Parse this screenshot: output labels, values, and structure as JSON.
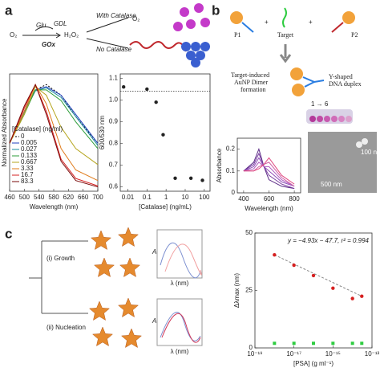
{
  "figure": {
    "panel_a": "a",
    "panel_b": "b",
    "panel_c": "c",
    "scheme_a": {
      "o2": "O₂",
      "glu": "Glu",
      "gdl": "GDL",
      "h2o2": "H₂O₂",
      "gox": "GOx",
      "with": "With Catalase",
      "o2_out": "O₂",
      "without": "No Catalase"
    },
    "scheme_b": {
      "p1": "P1",
      "plus1": "+",
      "target": "Target",
      "plus2": "+",
      "p2": "P2",
      "dimer": [
        "Target-induced",
        "AuNP Dimer",
        "formation"
      ],
      "duplex": [
        "Y-shaped",
        "DNA duplex"
      ],
      "series_order": "1 → 6",
      "scale_small": "100 nm",
      "scale_large": "500 nm"
    },
    "scheme_c": {
      "growth": "(i) Growth",
      "nucleation": "(ii) Nucleation",
      "a1": "A",
      "x1": "λ (nm)",
      "a2": "A",
      "x2": "λ (nm)"
    }
  },
  "chart_data": [
    {
      "type": "line",
      "xlabel": "Wavelength (nm)",
      "ylabel": "Normalized Absorbance",
      "legend_title": "[Catalase] (ng/ml)",
      "x": [
        460,
        500,
        530,
        560,
        600,
        640,
        700
      ],
      "xlim": [
        460,
        700
      ],
      "xticks": [
        460,
        500,
        540,
        580,
        620,
        660,
        700
      ],
      "ylim": [
        0,
        1.1
      ],
      "series": [
        {
          "name": "0",
          "color": "#000000",
          "dash": true,
          "values": [
            0.45,
            0.75,
            0.95,
            1.0,
            0.9,
            0.7,
            0.45
          ]
        },
        {
          "name": "0.005",
          "color": "#1f3fbf",
          "values": [
            0.45,
            0.75,
            0.95,
            0.98,
            0.9,
            0.72,
            0.45
          ]
        },
        {
          "name": "0.027",
          "color": "#1a8c9c",
          "values": [
            0.45,
            0.74,
            0.94,
            0.97,
            0.88,
            0.7,
            0.43
          ]
        },
        {
          "name": "0.133",
          "color": "#2e9e3a",
          "values": [
            0.45,
            0.72,
            0.95,
            0.95,
            0.85,
            0.65,
            0.4
          ]
        },
        {
          "name": "0.667",
          "color": "#b5a51d",
          "values": [
            0.45,
            0.72,
            0.98,
            0.9,
            0.6,
            0.4,
            0.25
          ]
        },
        {
          "name": "3.33",
          "color": "#e07b1a",
          "values": [
            0.45,
            0.75,
            1.0,
            0.82,
            0.4,
            0.2,
            0.1
          ]
        },
        {
          "name": "16.7",
          "color": "#d62020",
          "values": [
            0.45,
            0.78,
            1.0,
            0.75,
            0.3,
            0.12,
            0.05
          ]
        },
        {
          "name": "83.3",
          "color": "#7a0a0a",
          "values": [
            0.45,
            0.8,
            1.0,
            0.72,
            0.28,
            0.1,
            0.04
          ]
        }
      ]
    },
    {
      "type": "scatter",
      "xlabel": "[Catalase] (ng/mL)",
      "ylabel": "600/530 nm",
      "log_x": true,
      "xlim": [
        0.004,
        200
      ],
      "xticks": [
        0.01,
        0.1,
        1,
        10,
        100
      ],
      "ylim": [
        0.58,
        1.12
      ],
      "yticks": [
        0.6,
        0.7,
        0.8,
        0.9,
        {
          "value": 1,
          "label": "1.0"
        },
        1.1
      ],
      "hline": 1.04,
      "series": [
        {
          "name": null,
          "color": "#222222",
          "x": [
            0.006,
            0.1,
            0.3,
            0.7,
            3,
            20,
            80
          ],
          "values": [
            1.06,
            1.05,
            0.99,
            0.84,
            0.64,
            0.64,
            0.63
          ]
        }
      ]
    },
    {
      "type": "line",
      "xlabel": "Wavelength (nm)",
      "ylabel": "Absorbance",
      "x": [
        400,
        480,
        520,
        560,
        600,
        700,
        800
      ],
      "xlim": [
        350,
        850
      ],
      "xticks": [
        400,
        600,
        800
      ],
      "ylim": [
        0,
        0.25
      ],
      "yticks": [
        0,
        0.1,
        0.2
      ],
      "series": [
        {
          "name": null,
          "color": "#5b2a86",
          "values": [
            0.1,
            0.14,
            0.2,
            0.12,
            0.06,
            0.03,
            0.02
          ]
        },
        {
          "name": null,
          "color": "#7a3fa0",
          "values": [
            0.1,
            0.13,
            0.18,
            0.12,
            0.08,
            0.04,
            0.02
          ]
        },
        {
          "name": null,
          "color": "#8f4fb8",
          "values": [
            0.1,
            0.12,
            0.16,
            0.12,
            0.1,
            0.05,
            0.03
          ]
        },
        {
          "name": null,
          "color": "#b05cc0",
          "values": [
            0.1,
            0.11,
            0.14,
            0.12,
            0.12,
            0.06,
            0.03
          ]
        },
        {
          "name": null,
          "color": "#cf5fa5",
          "values": [
            0.1,
            0.1,
            0.12,
            0.13,
            0.14,
            0.07,
            0.03
          ]
        },
        {
          "name": null,
          "color": "#e04a80",
          "values": [
            0.1,
            0.1,
            0.11,
            0.13,
            0.16,
            0.08,
            0.04
          ]
        }
      ]
    },
    {
      "type": "scatter",
      "xlabel": "[PSA] (g ml⁻¹)",
      "ylabel": "Δλmax (nm)",
      "log_x": true,
      "annotation": "y = −4.93x − 47.7, r² = 0.994",
      "xlim": [
        1e-19,
        1e-13
      ],
      "xticks": [
        {
          "value": 1e-19,
          "label": "10⁻¹⁹"
        },
        {
          "value": 1e-17,
          "label": "10⁻¹⁷"
        },
        {
          "value": 1e-15,
          "label": "10⁻¹⁵"
        },
        {
          "value": 1e-13,
          "label": "10⁻¹³"
        }
      ],
      "ylim": [
        0,
        50
      ],
      "yticks": [
        0,
        25,
        50
      ],
      "fit": true,
      "series": [
        {
          "name": null,
          "color": "#d62020",
          "x": [
            1e-18,
            1e-17,
            1e-16,
            1e-15,
            1e-14,
            3e-14
          ],
          "values": [
            40.5,
            36,
            31.5,
            26,
            21.5,
            22.5
          ]
        },
        {
          "name": null,
          "color": "#2ecc40",
          "x": [
            1e-18,
            1e-17,
            1e-16,
            1e-15,
            1e-14,
            3e-14
          ],
          "values": [
            2,
            2,
            2,
            2,
            2,
            2
          ]
        }
      ]
    }
  ]
}
